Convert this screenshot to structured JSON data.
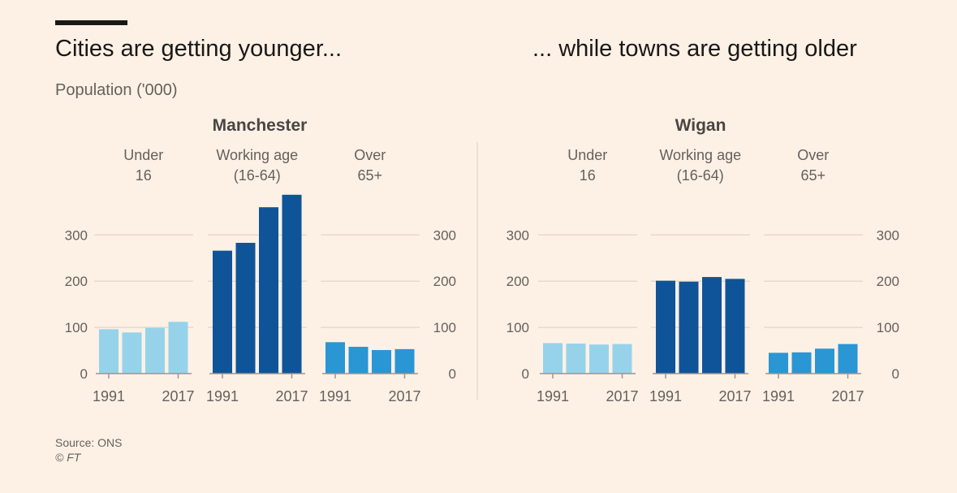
{
  "headline_left": "Cities are getting younger...",
  "headline_right": "... while towns are getting older",
  "subtitle": "Population ('000)",
  "source": "Source: ONS",
  "copyright": "© FT",
  "colors": {
    "under16": "#96d3ea",
    "working": "#0f5499",
    "over65": "#2a96d4",
    "grid": "#e6d9ce",
    "axis": "#9c9591",
    "text": "#66605c",
    "title": "#4a4542"
  },
  "chart_data": [
    {
      "type": "bar",
      "title": "Manchester",
      "groups": [
        "Under\n16",
        "Working age\n(16-64)",
        "Over\n65+"
      ],
      "x": [
        1991,
        1999,
        2008,
        2017
      ],
      "x_tick_labels": [
        "1991",
        "2017"
      ],
      "y_ticks": [
        0,
        100,
        200,
        300
      ],
      "ylim": [
        0,
        390
      ],
      "series": [
        {
          "values": [
            96,
            89,
            99,
            112
          ]
        },
        {
          "values": [
            266,
            283,
            360,
            387
          ]
        },
        {
          "values": [
            68,
            58,
            51,
            53
          ]
        }
      ]
    },
    {
      "type": "bar",
      "title": "Wigan",
      "groups": [
        "Under\n16",
        "Working age\n(16-64)",
        "Over\n65+"
      ],
      "x": [
        1991,
        1999,
        2008,
        2017
      ],
      "x_tick_labels": [
        "1991",
        "2017"
      ],
      "y_ticks": [
        0,
        100,
        200,
        300
      ],
      "ylim": [
        0,
        390
      ],
      "series": [
        {
          "values": [
            66,
            65,
            63,
            64
          ]
        },
        {
          "values": [
            201,
            199,
            209,
            205
          ]
        },
        {
          "values": [
            45,
            46,
            54,
            64
          ]
        }
      ]
    }
  ]
}
